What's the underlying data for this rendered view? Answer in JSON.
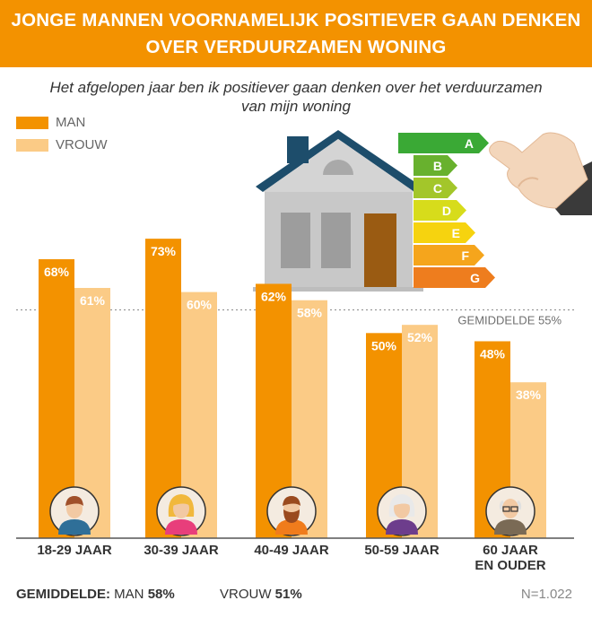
{
  "banner": {
    "line1": "JONGE MANNEN VOORNAMELIJK POSITIEVER GAAN DENKEN",
    "line2": "OVER VERDUURZAMEN WONING"
  },
  "subtitle": {
    "line1": "Het afgelopen jaar ben ik positiever gaan denken over het verduurzamen",
    "line2": "van mijn woning"
  },
  "colors": {
    "man": "#f39200",
    "vrouw": "#fbcb86",
    "banner": "#f39200"
  },
  "energy_labels": [
    "A",
    "B",
    "C",
    "D",
    "E",
    "F",
    "G"
  ],
  "chart_data": {
    "type": "bar",
    "categories": [
      "18-29 JAAR",
      "30-39 JAAR",
      "40-49 JAAR",
      "50-59 JAAR",
      "60 JAAR EN OUDER"
    ],
    "category_lines": [
      [
        "18-29 JAAR"
      ],
      [
        "30-39 JAAR"
      ],
      [
        "40-49 JAAR"
      ],
      [
        "50-59 JAAR"
      ],
      [
        "60 JAAR",
        "EN OUDER"
      ]
    ],
    "series": [
      {
        "name": "MAN",
        "values": [
          68,
          73,
          62,
          50,
          48
        ],
        "labels": [
          "68%",
          "73%",
          "62%",
          "50%",
          "48%"
        ]
      },
      {
        "name": "VROUW",
        "values": [
          61,
          60,
          58,
          52,
          38
        ],
        "labels": [
          "61%",
          "60%",
          "58%",
          "52%",
          "38%"
        ]
      }
    ],
    "reference": {
      "value": 55,
      "label": "GEMIDDELDE 55%"
    },
    "ylim": [
      0,
      100
    ],
    "legend": "top-left"
  },
  "footer": {
    "label": "GEMIDDELDE:",
    "man_label": "MAN",
    "man_value": "58%",
    "vrouw_label": "VROUW",
    "vrouw_value": "51%",
    "n": "N=1.022"
  }
}
